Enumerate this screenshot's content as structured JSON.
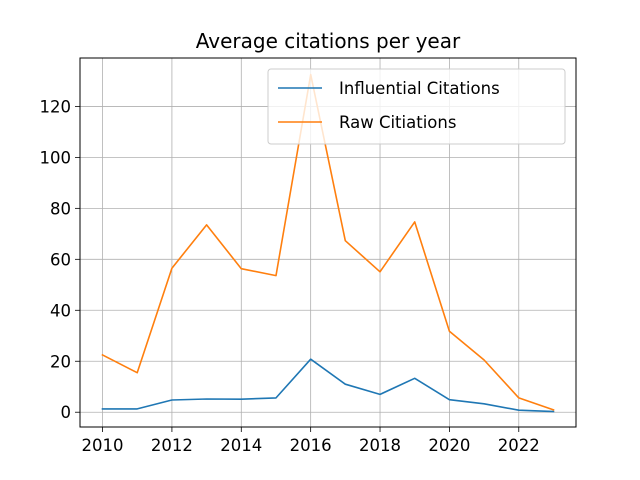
{
  "chart_data": {
    "type": "line",
    "title": "Average citations per year",
    "xlabel": "",
    "ylabel": "",
    "x": [
      2010,
      2011,
      2012,
      2013,
      2014,
      2015,
      2016,
      2017,
      2018,
      2019,
      2020,
      2021,
      2022,
      2023
    ],
    "series": [
      {
        "name": "Influential Citations",
        "color": "#1f77b4",
        "values": [
          1.3,
          1.3,
          4.8,
          5.2,
          5.1,
          5.6,
          20.8,
          11.0,
          7.0,
          13.3,
          4.9,
          3.3,
          0.8,
          0.3
        ]
      },
      {
        "name": "Raw Citiations",
        "color": "#ff7f0e",
        "values": [
          22.5,
          15.5,
          56.5,
          73.5,
          56.3,
          53.6,
          132.5,
          67.3,
          55.1,
          74.7,
          31.8,
          20.5,
          5.6,
          0.9
        ]
      }
    ],
    "xlim": [
      2009.35,
      2023.65
    ],
    "ylim": [
      -5.8,
      139
    ],
    "xticks": [
      2010,
      2012,
      2014,
      2016,
      2018,
      2020,
      2022
    ],
    "yticks": [
      0,
      20,
      40,
      60,
      80,
      100,
      120
    ],
    "grid": true,
    "legend_position": "top-right"
  }
}
